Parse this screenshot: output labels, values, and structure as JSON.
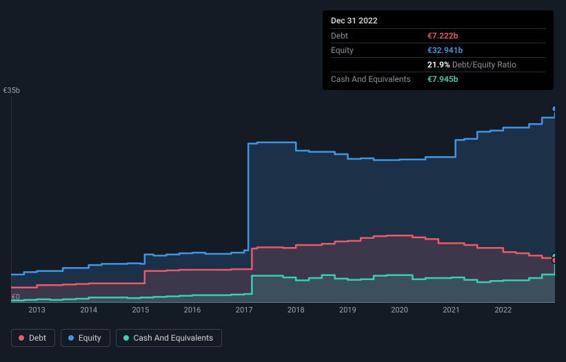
{
  "tooltip": {
    "title": "Dec 31 2022",
    "rows": [
      {
        "label": "Debt",
        "value": "€7.222b",
        "color": "#eb5a68"
      },
      {
        "label": "Equity",
        "value": "€32.941b",
        "color": "#3b97e8"
      },
      {
        "label": "",
        "value": "21.9%",
        "suffix": "Debt/Equity Ratio",
        "color": "#ffffff"
      },
      {
        "label": "Cash And Equivalents",
        "value": "€7.945b",
        "color": "#34d1b3"
      }
    ]
  },
  "chart": {
    "type": "area-step",
    "y_axis": {
      "min": 0,
      "max": 35,
      "unit": "b",
      "currency": "€",
      "labels": [
        {
          "v": 35,
          "text": "€35b"
        },
        {
          "v": 0,
          "text": "€0"
        }
      ]
    },
    "x_axis": {
      "min": 2012.5,
      "max": 2023.0,
      "ticks": [
        2013,
        2014,
        2015,
        2016,
        2017,
        2018,
        2019,
        2020,
        2021,
        2022
      ]
    },
    "background": "#151b24",
    "axis_line_color": "#5a6270",
    "grid_color": "#4b525e",
    "series": [
      {
        "name": "Equity",
        "color": "#3b97e8",
        "width": 2.5,
        "fill_opacity": 0.18,
        "points": [
          [
            2012.5,
            4.8
          ],
          [
            2012.75,
            5.2
          ],
          [
            2013.0,
            5.4
          ],
          [
            2013.25,
            5.4
          ],
          [
            2013.5,
            5.9
          ],
          [
            2013.75,
            5.9
          ],
          [
            2014.0,
            6.4
          ],
          [
            2014.25,
            6.6
          ],
          [
            2014.5,
            6.6
          ],
          [
            2014.75,
            6.7
          ],
          [
            2015.0,
            6.6
          ],
          [
            2015.08,
            8.2
          ],
          [
            2015.25,
            8.0
          ],
          [
            2015.5,
            8.2
          ],
          [
            2015.75,
            8.4
          ],
          [
            2016.0,
            8.5
          ],
          [
            2016.25,
            8.3
          ],
          [
            2016.5,
            8.3
          ],
          [
            2016.75,
            8.5
          ],
          [
            2017.0,
            8.9
          ],
          [
            2017.08,
            27.0
          ],
          [
            2017.25,
            27.2
          ],
          [
            2017.5,
            27.2
          ],
          [
            2017.75,
            27.2
          ],
          [
            2018.0,
            25.8
          ],
          [
            2018.25,
            25.6
          ],
          [
            2018.5,
            25.6
          ],
          [
            2018.75,
            25.2
          ],
          [
            2019.0,
            24.4
          ],
          [
            2019.25,
            24.5
          ],
          [
            2019.5,
            24.2
          ],
          [
            2019.75,
            24.2
          ],
          [
            2020.0,
            24.3
          ],
          [
            2020.25,
            24.3
          ],
          [
            2020.5,
            24.7
          ],
          [
            2020.75,
            24.7
          ],
          [
            2021.0,
            24.7
          ],
          [
            2021.08,
            27.6
          ],
          [
            2021.25,
            27.8
          ],
          [
            2021.5,
            29.0
          ],
          [
            2021.75,
            29.2
          ],
          [
            2022.0,
            29.7
          ],
          [
            2022.25,
            29.7
          ],
          [
            2022.5,
            30.3
          ],
          [
            2022.75,
            31.4
          ],
          [
            2023.0,
            32.9
          ]
        ]
      },
      {
        "name": "Debt",
        "color": "#eb5a68",
        "width": 2.5,
        "fill_opacity": 0.16,
        "points": [
          [
            2012.5,
            2.6
          ],
          [
            2012.75,
            2.6
          ],
          [
            2013.0,
            3.0
          ],
          [
            2013.25,
            3.0
          ],
          [
            2013.5,
            3.1
          ],
          [
            2013.75,
            3.2
          ],
          [
            2014.0,
            3.3
          ],
          [
            2014.25,
            3.3
          ],
          [
            2014.5,
            3.3
          ],
          [
            2014.75,
            3.3
          ],
          [
            2015.0,
            3.3
          ],
          [
            2015.08,
            5.4
          ],
          [
            2015.25,
            5.4
          ],
          [
            2015.5,
            5.5
          ],
          [
            2015.75,
            5.6
          ],
          [
            2016.0,
            5.6
          ],
          [
            2016.25,
            5.6
          ],
          [
            2016.5,
            5.6
          ],
          [
            2016.75,
            5.7
          ],
          [
            2017.0,
            5.7
          ],
          [
            2017.15,
            9.2
          ],
          [
            2017.25,
            9.4
          ],
          [
            2017.5,
            9.4
          ],
          [
            2017.75,
            9.3
          ],
          [
            2018.0,
            9.8
          ],
          [
            2018.25,
            9.8
          ],
          [
            2018.5,
            10.0
          ],
          [
            2018.75,
            10.4
          ],
          [
            2019.0,
            10.5
          ],
          [
            2019.25,
            11.0
          ],
          [
            2019.5,
            11.3
          ],
          [
            2019.75,
            11.4
          ],
          [
            2020.0,
            11.4
          ],
          [
            2020.25,
            11.1
          ],
          [
            2020.5,
            10.8
          ],
          [
            2020.75,
            10.1
          ],
          [
            2021.0,
            10.1
          ],
          [
            2021.25,
            9.8
          ],
          [
            2021.5,
            9.3
          ],
          [
            2021.75,
            9.3
          ],
          [
            2022.0,
            8.6
          ],
          [
            2022.25,
            8.4
          ],
          [
            2022.5,
            8.0
          ],
          [
            2022.75,
            7.6
          ],
          [
            2023.0,
            7.2
          ]
        ]
      },
      {
        "name": "Cash And Equivalents",
        "color": "#34d1b3",
        "width": 2.5,
        "fill_opacity": 0.16,
        "points": [
          [
            2012.5,
            0.4
          ],
          [
            2012.75,
            0.5
          ],
          [
            2013.0,
            0.6
          ],
          [
            2013.25,
            0.5
          ],
          [
            2013.5,
            0.6
          ],
          [
            2013.75,
            0.7
          ],
          [
            2014.0,
            0.9
          ],
          [
            2014.25,
            0.9
          ],
          [
            2014.5,
            0.9
          ],
          [
            2014.75,
            0.8
          ],
          [
            2015.0,
            0.9
          ],
          [
            2015.25,
            1.0
          ],
          [
            2015.5,
            1.1
          ],
          [
            2015.75,
            1.2
          ],
          [
            2016.0,
            1.3
          ],
          [
            2016.25,
            1.3
          ],
          [
            2016.5,
            1.3
          ],
          [
            2016.75,
            1.4
          ],
          [
            2017.0,
            1.5
          ],
          [
            2017.15,
            4.6
          ],
          [
            2017.5,
            4.6
          ],
          [
            2017.75,
            4.3
          ],
          [
            2018.0,
            3.8
          ],
          [
            2018.25,
            4.2
          ],
          [
            2018.5,
            4.7
          ],
          [
            2018.75,
            4.1
          ],
          [
            2019.0,
            3.9
          ],
          [
            2019.25,
            4.0
          ],
          [
            2019.5,
            4.6
          ],
          [
            2019.75,
            4.7
          ],
          [
            2020.0,
            4.7
          ],
          [
            2020.25,
            4.0
          ],
          [
            2020.5,
            4.2
          ],
          [
            2020.75,
            4.2
          ],
          [
            2021.0,
            4.3
          ],
          [
            2021.25,
            3.9
          ],
          [
            2021.5,
            3.5
          ],
          [
            2021.75,
            3.7
          ],
          [
            2022.0,
            3.8
          ],
          [
            2022.25,
            3.8
          ],
          [
            2022.5,
            4.2
          ],
          [
            2022.75,
            4.8
          ],
          [
            2023.0,
            7.9
          ]
        ]
      }
    ],
    "end_markers": [
      {
        "x": 2023.0,
        "y": 32.9,
        "color": "#3b97e8"
      },
      {
        "x": 2023.0,
        "y": 7.9,
        "color": "#34d1b3"
      },
      {
        "x": 2023.0,
        "y": 7.2,
        "color": "#eb5a68"
      }
    ]
  },
  "legend": [
    {
      "label": "Debt",
      "color": "#eb5a68"
    },
    {
      "label": "Equity",
      "color": "#3b97e8"
    },
    {
      "label": "Cash And Equivalents",
      "color": "#34d1b3"
    }
  ]
}
